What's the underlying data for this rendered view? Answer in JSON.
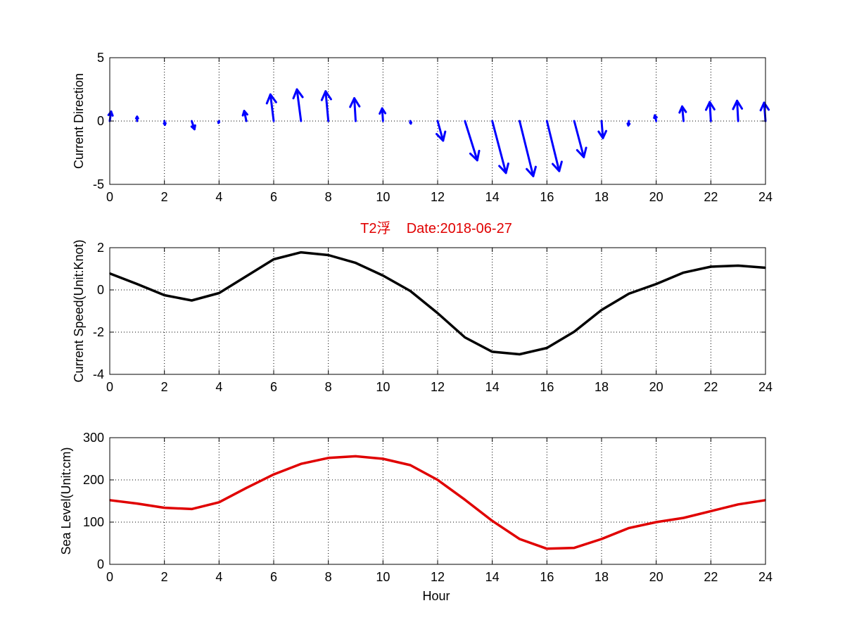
{
  "colors": {
    "direction_arrows": "#0000ff",
    "current_speed_line": "#000000",
    "sea_level_line": "#e00000",
    "title": "#e00000"
  },
  "chart_data": [
    {
      "type": "quiver",
      "ylabel": "Current Direction",
      "xlim": [
        0,
        24
      ],
      "ylim": [
        -5,
        5
      ],
      "xticks": [
        "0",
        "2",
        "4",
        "6",
        "8",
        "10",
        "12",
        "14",
        "16",
        "18",
        "20",
        "22",
        "24"
      ],
      "yticks": [
        "-5",
        "0",
        "5"
      ],
      "grid": true,
      "arrows": [
        {
          "x": 0,
          "u": 0.05,
          "v": 0.75
        },
        {
          "x": 1,
          "u": 0.0,
          "v": 0.35
        },
        {
          "x": 2,
          "u": 0.02,
          "v": -0.3
        },
        {
          "x": 3,
          "u": 0.1,
          "v": -0.65
        },
        {
          "x": 4,
          "u": -0.02,
          "v": -0.15
        },
        {
          "x": 5,
          "u": -0.08,
          "v": 0.8
        },
        {
          "x": 6,
          "u": -0.12,
          "v": 2.1
        },
        {
          "x": 7,
          "u": -0.15,
          "v": 2.5
        },
        {
          "x": 8,
          "u": -0.1,
          "v": 2.35
        },
        {
          "x": 9,
          "u": -0.05,
          "v": 1.8
        },
        {
          "x": 10,
          "u": -0.03,
          "v": 1.0
        },
        {
          "x": 11,
          "u": 0.02,
          "v": -0.2
        },
        {
          "x": 12,
          "u": 0.2,
          "v": -1.55
        },
        {
          "x": 13,
          "u": 0.45,
          "v": -3.1
        },
        {
          "x": 14,
          "u": 0.5,
          "v": -4.1
        },
        {
          "x": 15,
          "u": 0.5,
          "v": -4.35
        },
        {
          "x": 16,
          "u": 0.45,
          "v": -3.95
        },
        {
          "x": 17,
          "u": 0.35,
          "v": -2.85
        },
        {
          "x": 18,
          "u": 0.05,
          "v": -1.35
        },
        {
          "x": 19,
          "u": -0.02,
          "v": -0.35
        },
        {
          "x": 20,
          "u": -0.05,
          "v": 0.45
        },
        {
          "x": 21,
          "u": -0.05,
          "v": 1.15
        },
        {
          "x": 22,
          "u": -0.04,
          "v": 1.5
        },
        {
          "x": 23,
          "u": -0.04,
          "v": 1.6
        },
        {
          "x": 24,
          "u": -0.05,
          "v": 1.45
        }
      ]
    },
    {
      "type": "line",
      "title": "T2浮    Date:2018-06-27",
      "ylabel": "Current Speed(Unit:Knot)",
      "xlim": [
        0,
        24
      ],
      "ylim": [
        -4,
        2
      ],
      "xticks": [
        "0",
        "2",
        "4",
        "6",
        "8",
        "10",
        "12",
        "14",
        "16",
        "18",
        "20",
        "22",
        "24"
      ],
      "yticks": [
        "-4",
        "-2",
        "0",
        "2"
      ],
      "grid": true,
      "x": [
        0,
        1,
        2,
        3,
        4,
        5,
        6,
        7,
        8,
        9,
        10,
        11,
        12,
        13,
        14,
        15,
        16,
        17,
        18,
        19,
        20,
        21,
        22,
        23,
        24
      ],
      "values": [
        0.78,
        0.28,
        -0.25,
        -0.5,
        -0.15,
        0.65,
        1.45,
        1.78,
        1.65,
        1.28,
        0.68,
        -0.05,
        -1.1,
        -2.25,
        -2.93,
        -3.05,
        -2.75,
        -1.98,
        -0.95,
        -0.18,
        0.28,
        0.82,
        1.1,
        1.15,
        1.05
      ]
    },
    {
      "type": "line",
      "xlabel": "Hour",
      "ylabel": "Sea Level(Unit:cm)",
      "xlim": [
        0,
        24
      ],
      "ylim": [
        0,
        300
      ],
      "xticks": [
        "0",
        "2",
        "4",
        "6",
        "8",
        "10",
        "12",
        "14",
        "16",
        "18",
        "20",
        "22",
        "24"
      ],
      "yticks": [
        "0",
        "100",
        "200",
        "300"
      ],
      "grid": true,
      "x": [
        0,
        1,
        2,
        3,
        4,
        5,
        6,
        7,
        8,
        9,
        10,
        11,
        12,
        13,
        14,
        15,
        16,
        17,
        18,
        19,
        20,
        21,
        22,
        23,
        24
      ],
      "values": [
        152,
        144,
        134,
        131,
        147,
        181,
        213,
        238,
        252,
        256,
        250,
        235,
        200,
        153,
        103,
        60,
        37,
        39,
        60,
        86,
        100,
        110,
        126,
        142,
        152
      ]
    }
  ]
}
